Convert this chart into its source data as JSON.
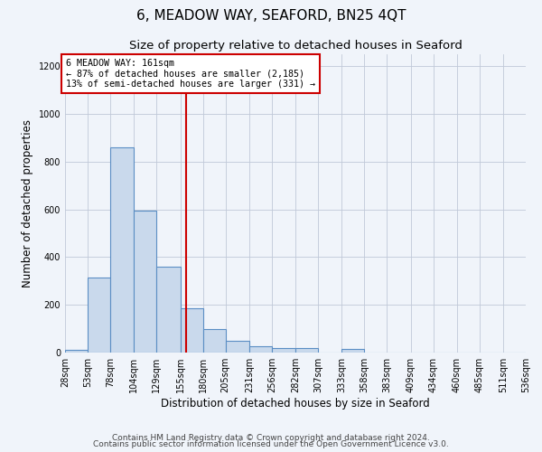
{
  "title": "6, MEADOW WAY, SEAFORD, BN25 4QT",
  "subtitle": "Size of property relative to detached houses in Seaford",
  "xlabel": "Distribution of detached houses by size in Seaford",
  "ylabel": "Number of detached properties",
  "bar_color": "#c9d9ec",
  "bar_edge_color": "#5b8ec4",
  "background_color": "#f0f4fa",
  "bins": [
    28,
    53,
    78,
    104,
    129,
    155,
    180,
    205,
    231,
    256,
    282,
    307,
    333,
    358,
    383,
    409,
    434,
    460,
    485,
    511,
    536
  ],
  "counts": [
    10,
    315,
    860,
    595,
    360,
    185,
    100,
    48,
    25,
    20,
    20,
    0,
    15,
    0,
    0,
    0,
    0,
    0,
    0,
    0
  ],
  "vline_x": 161,
  "vline_color": "#cc0000",
  "annotation_title": "6 MEADOW WAY: 161sqm",
  "annotation_line1": "← 87% of detached houses are smaller (2,185)",
  "annotation_line2": "13% of semi-detached houses are larger (331) →",
  "annotation_box_color": "#cc0000",
  "ylim": [
    0,
    1250
  ],
  "yticks": [
    0,
    200,
    400,
    600,
    800,
    1000,
    1200
  ],
  "footnote1": "Contains HM Land Registry data © Crown copyright and database right 2024.",
  "footnote2": "Contains public sector information licensed under the Open Government Licence v3.0.",
  "grid_color": "#c0c8d8",
  "title_fontsize": 11,
  "subtitle_fontsize": 9.5,
  "label_fontsize": 8.5,
  "tick_fontsize": 7,
  "footnote_fontsize": 6.5
}
